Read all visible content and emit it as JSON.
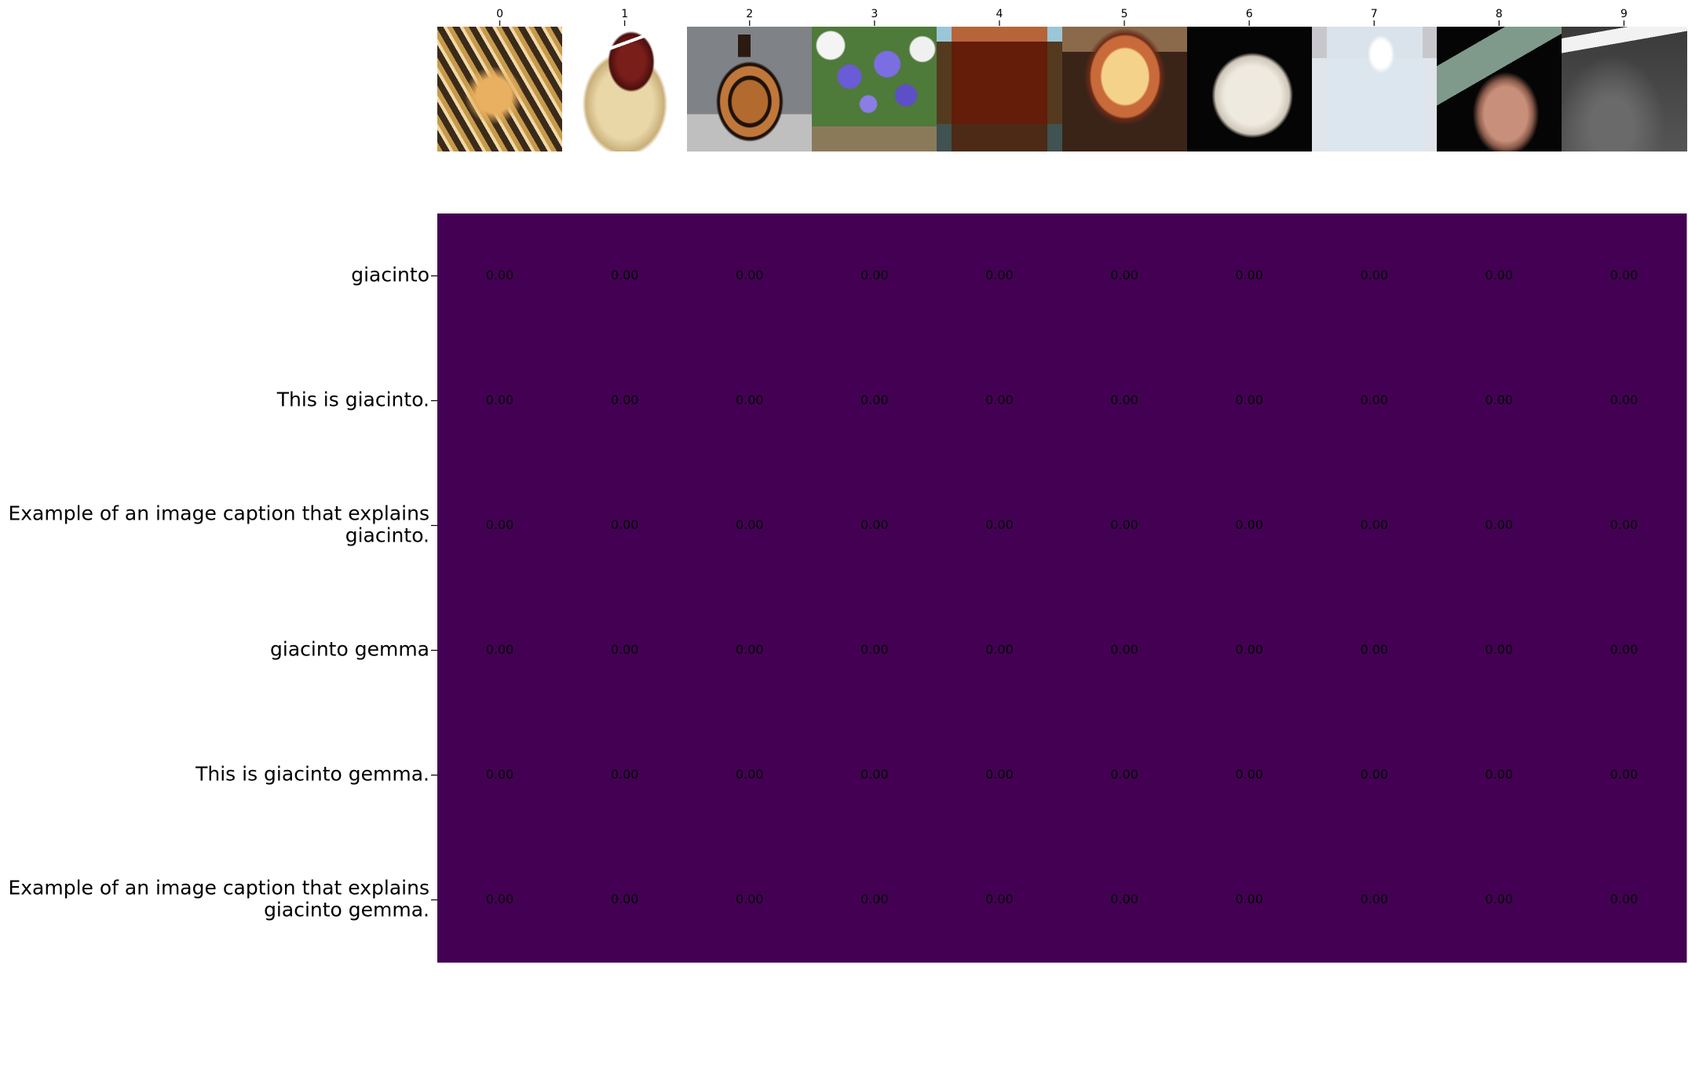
{
  "chart_data": {
    "type": "heatmap",
    "title": "",
    "xlabel": "",
    "ylabel": "",
    "colormap": "viridis",
    "cell_color": "#440154",
    "x_tick_labels": [
      "0",
      "1",
      "2",
      "3",
      "4",
      "5",
      "6",
      "7",
      "8",
      "9"
    ],
    "images": [
      {
        "index": "0",
        "icon": "ornate-jewelry-photo"
      },
      {
        "index": "1",
        "icon": "red-crystal-on-rock-photo"
      },
      {
        "index": "2",
        "icon": "greek-vase-photo"
      },
      {
        "index": "3",
        "icon": "hyacinth-flowers-photo"
      },
      {
        "index": "4",
        "icon": "brown-crystal-cube-photo"
      },
      {
        "index": "5",
        "icon": "copper-pot-photo"
      },
      {
        "index": "6",
        "icon": "white-shell-photo"
      },
      {
        "index": "7",
        "icon": "glass-of-water-photo"
      },
      {
        "index": "8",
        "icon": "mineral-specimen-photo"
      },
      {
        "index": "9",
        "icon": "glass-tube-powder-photo"
      }
    ],
    "y_tick_labels": [
      [
        "giacinto"
      ],
      [
        "This is giacinto."
      ],
      [
        "Example of an image caption that explains",
        "giacinto."
      ],
      [
        "giacinto gemma"
      ],
      [
        "This is giacinto gemma."
      ],
      [
        "Example of an image caption that explains",
        "giacinto gemma."
      ]
    ],
    "values": [
      [
        0.0,
        0.0,
        0.0,
        0.0,
        0.0,
        0.0,
        0.0,
        0.0,
        0.0,
        0.0
      ],
      [
        0.0,
        0.0,
        0.0,
        0.0,
        0.0,
        0.0,
        0.0,
        0.0,
        0.0,
        0.0
      ],
      [
        0.0,
        0.0,
        0.0,
        0.0,
        0.0,
        0.0,
        0.0,
        0.0,
        0.0,
        0.0
      ],
      [
        0.0,
        0.0,
        0.0,
        0.0,
        0.0,
        0.0,
        0.0,
        0.0,
        0.0,
        0.0
      ],
      [
        0.0,
        0.0,
        0.0,
        0.0,
        0.0,
        0.0,
        0.0,
        0.0,
        0.0,
        0.0
      ],
      [
        0.0,
        0.0,
        0.0,
        0.0,
        0.0,
        0.0,
        0.0,
        0.0,
        0.0,
        0.0
      ]
    ],
    "value_format_decimals": 2,
    "grid": false,
    "legend": "none"
  }
}
